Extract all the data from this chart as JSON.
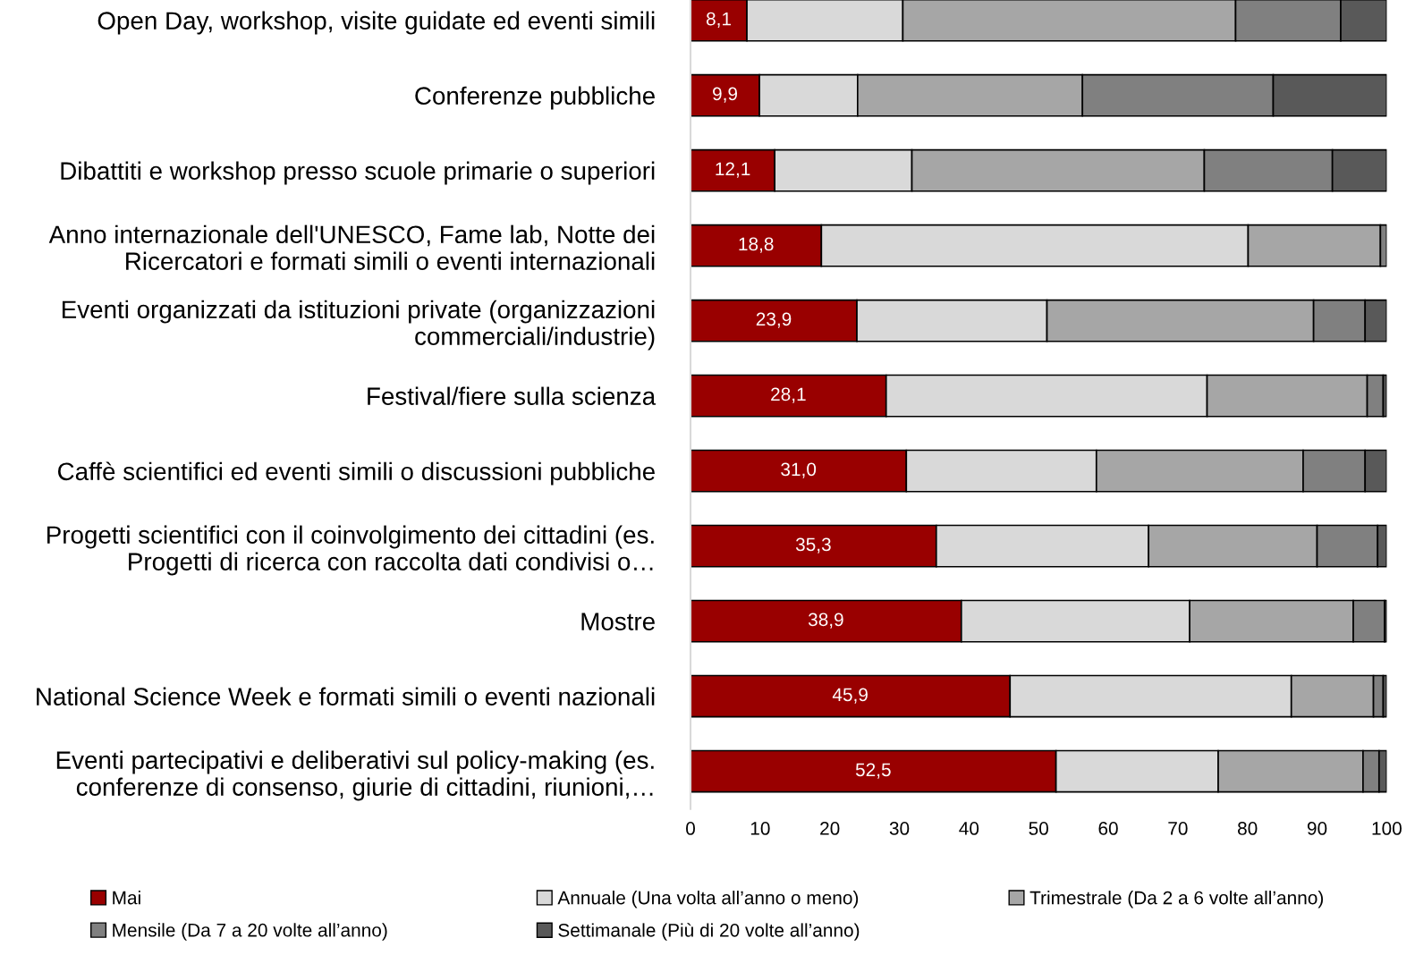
{
  "chart_data": {
    "type": "bar",
    "orientation": "horizontal",
    "stacked": true,
    "categories": [
      "Open Day, workshop, visite guidate ed eventi simili",
      "Conferenze pubbliche",
      "Dibattiti e workshop presso scuole primarie o superiori",
      "Anno internazionale dell'UNESCO, Fame lab, Notte dei\nRicercatori e formati simili o eventi internazionali",
      "Eventi organizzati da istituzioni private (organizzazioni\ncommerciali/industrie)",
      "Festival/fiere sulla scienza",
      "Caffè scientifici ed eventi simili o discussioni pubbliche",
      "Progetti scientifici con il coinvolgimento dei cittadini (es.\nProgetti di ricerca con raccolta dati condivisi o…",
      "Mostre",
      "National Science Week e formati simili o eventi nazionali",
      "Eventi partecipativi e deliberativi sul policy-making (es.\nconferenze di consenso, giurie di cittadini, riunioni,…"
    ],
    "series": [
      {
        "name": "Mai",
        "color": "#990000",
        "values": [
          8.1,
          9.9,
          12.1,
          18.8,
          23.9,
          28.1,
          31.0,
          35.3,
          38.9,
          45.9,
          52.5
        ],
        "value_labels": [
          "8,1",
          "9,9",
          "12,1",
          "18,8",
          "23,9",
          "28,1",
          "31,0",
          "35,3",
          "38,9",
          "45,9",
          "52,5"
        ]
      },
      {
        "name": "Annuale (Una volta all’anno o meno)",
        "color": "#d9d9d9",
        "values": [
          22.4,
          14.1,
          19.7,
          61.3,
          27.3,
          46.1,
          27.3,
          30.5,
          32.8,
          40.4,
          23.3
        ]
      },
      {
        "name": "Trimestrale (Da 2 a 6 volte all’anno)",
        "color": "#a6a6a6",
        "values": [
          47.8,
          32.3,
          42.0,
          19.0,
          38.3,
          23.0,
          29.7,
          24.2,
          23.5,
          11.8,
          20.8
        ]
      },
      {
        "name": "Mensile (Da 7 a 20 volte all’anno)",
        "color": "#808080",
        "values": [
          15.1,
          27.4,
          18.4,
          0.9,
          7.4,
          2.3,
          8.9,
          8.7,
          4.5,
          1.4,
          2.3
        ]
      },
      {
        "name": "Settimanale (Più di 20 volte all’anno)",
        "color": "#595959",
        "values": [
          6.6,
          16.3,
          7.8,
          null,
          3.1,
          0.5,
          3.1,
          1.3,
          0.3,
          0.5,
          1.1
        ]
      }
    ],
    "xlim": [
      0,
      100
    ],
    "xticks": [
      0,
      10,
      20,
      30,
      40,
      50,
      60,
      70,
      80,
      90,
      100
    ],
    "grid": false,
    "legend": "bottom"
  }
}
